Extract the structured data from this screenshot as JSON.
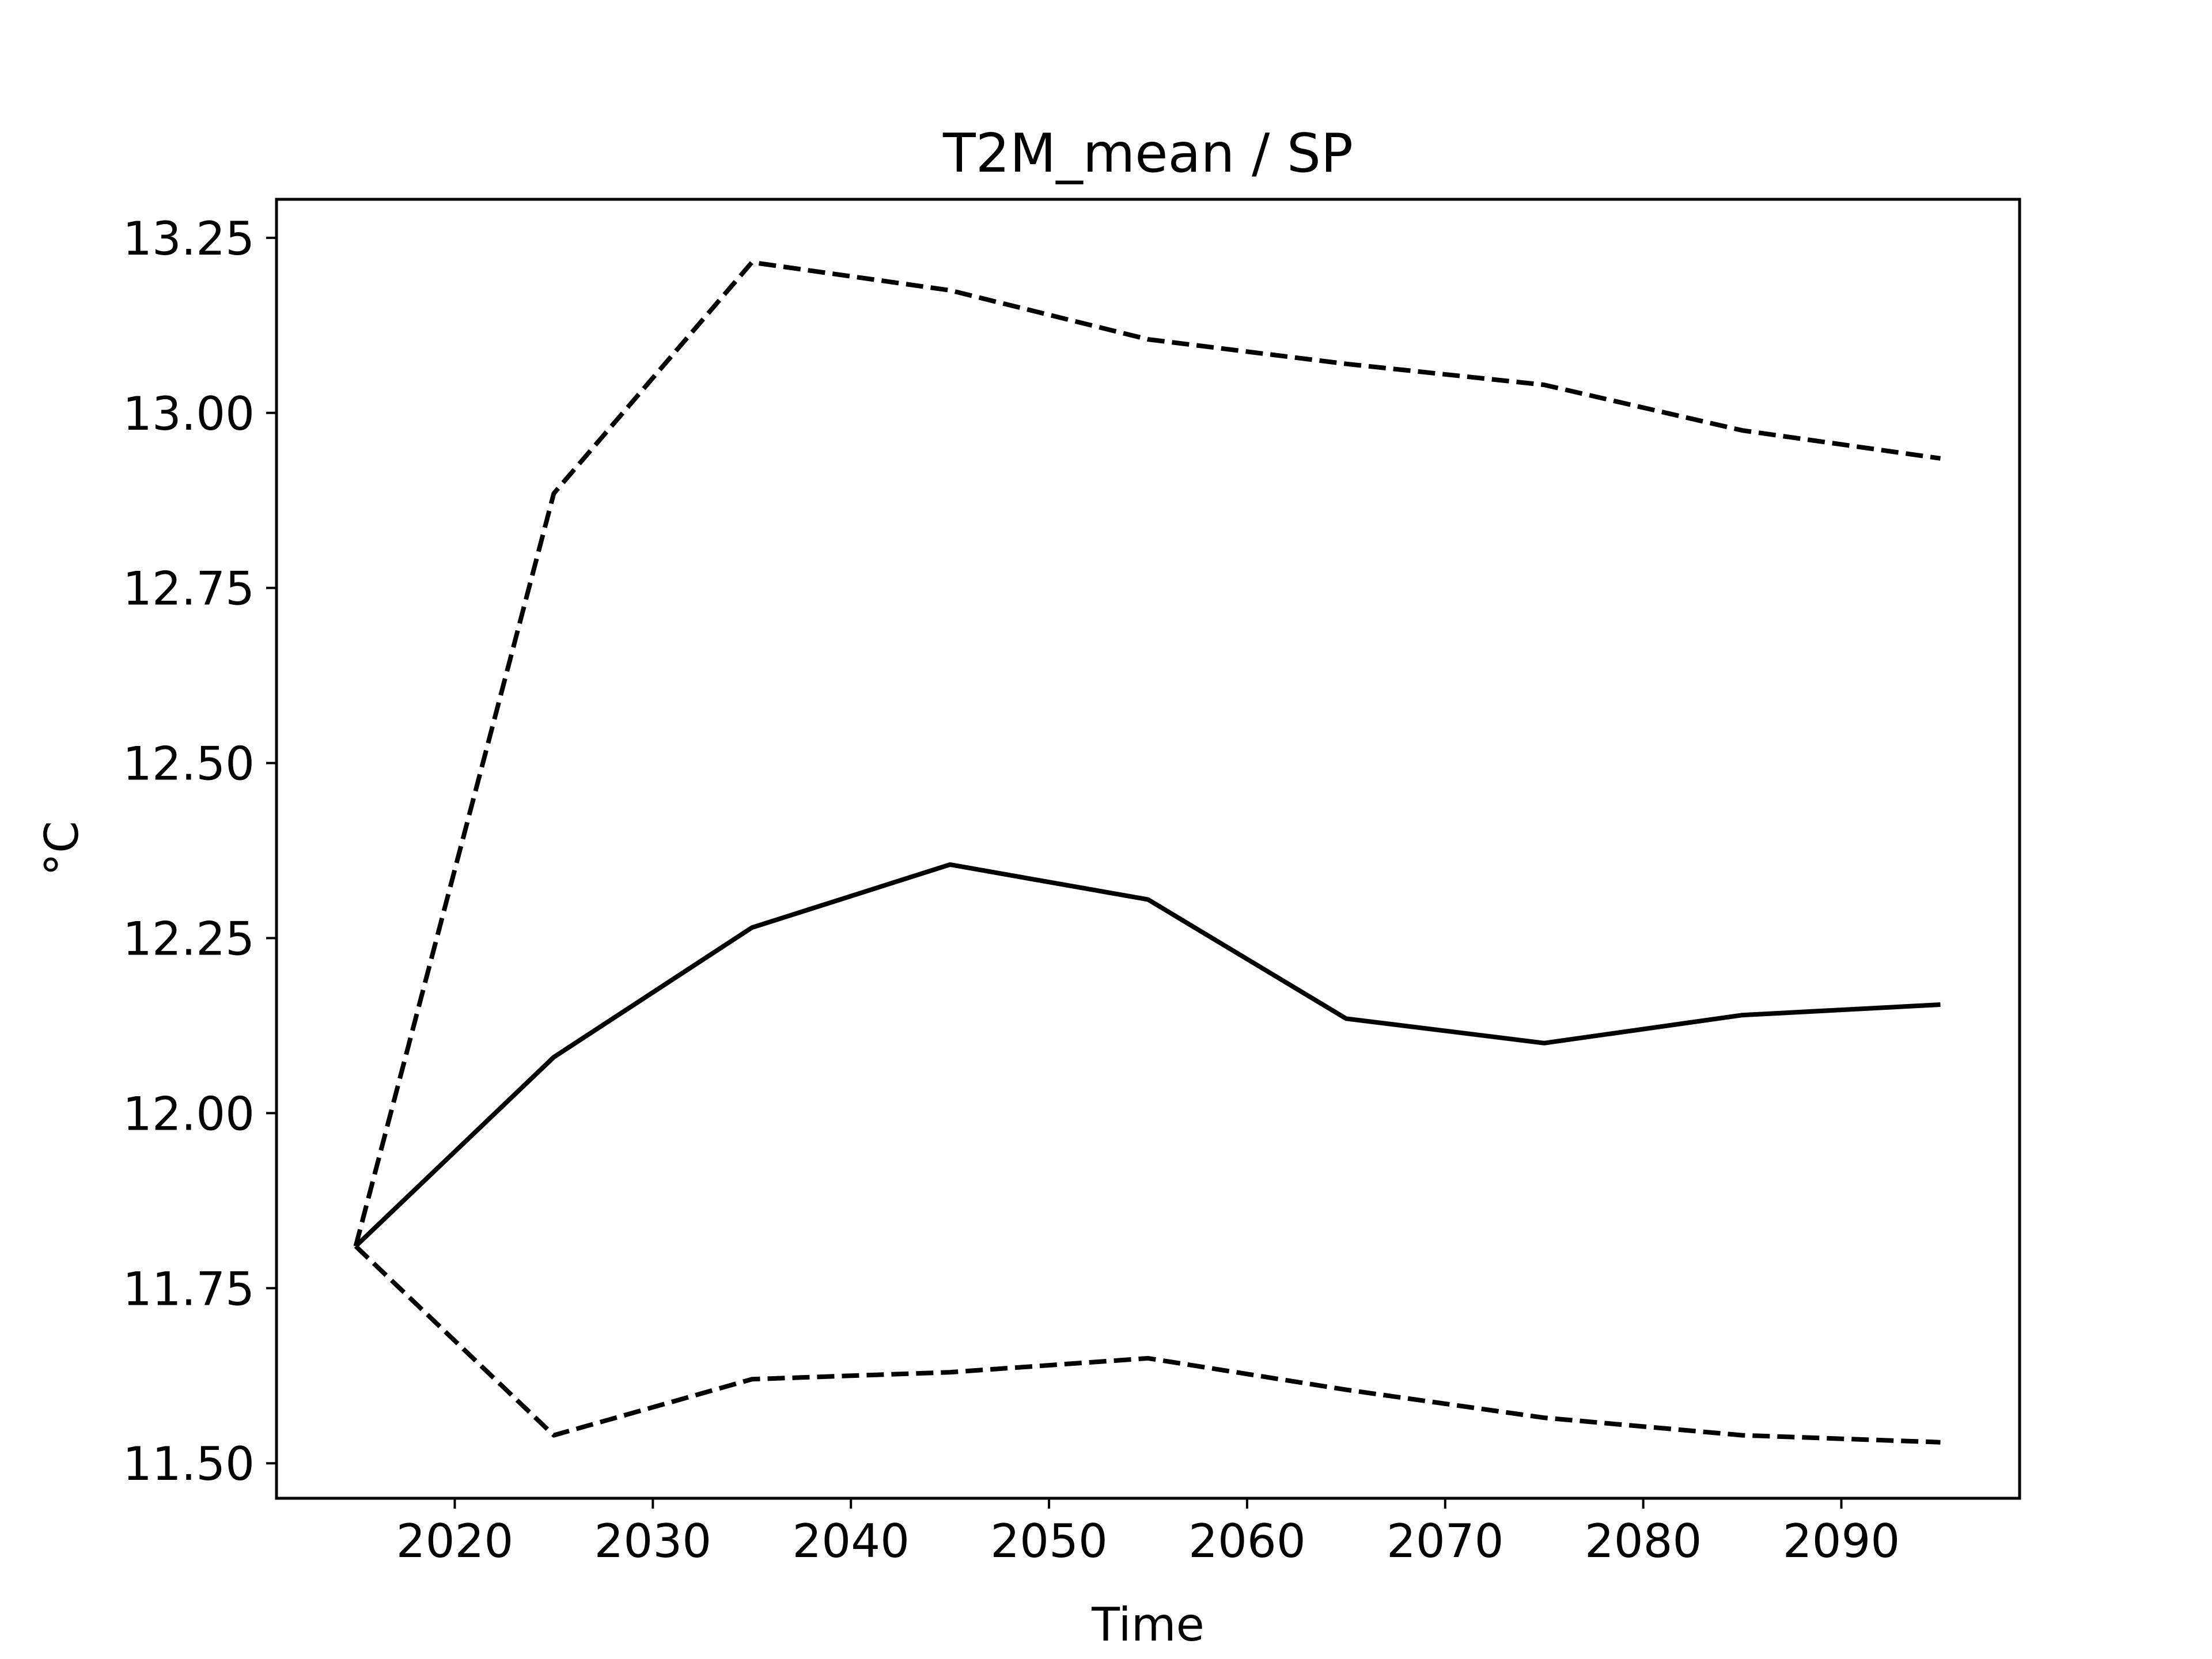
{
  "chart_data": {
    "type": "line",
    "title": "T2M_mean / SP",
    "xlabel": "Time",
    "ylabel": "°C",
    "x": [
      2015,
      2025,
      2035,
      2045,
      2055,
      2065,
      2075,
      2085,
      2095
    ],
    "xlim": [
      2011,
      2099
    ],
    "ylim": [
      11.45,
      13.305
    ],
    "xticks": [
      2020,
      2030,
      2040,
      2050,
      2060,
      2070,
      2080,
      2090
    ],
    "xtick_labels": [
      "2020",
      "2030",
      "2040",
      "2050",
      "2060",
      "2070",
      "2080",
      "2090"
    ],
    "yticks": [
      11.5,
      11.75,
      12.0,
      12.25,
      12.5,
      12.75,
      13.0,
      13.25
    ],
    "ytick_labels": [
      "11.50",
      "11.75",
      "12.00",
      "12.25",
      "12.50",
      "12.75",
      "13.00",
      "13.25"
    ],
    "grid": false,
    "series": [
      {
        "style": "dashed",
        "color": "#000000",
        "values": [
          11.81,
          12.885,
          13.215,
          13.175,
          13.105,
          13.07,
          13.04,
          12.975,
          12.935
        ]
      },
      {
        "style": "solid",
        "color": "#000000",
        "values": [
          11.81,
          12.08,
          12.265,
          12.355,
          12.305,
          12.135,
          12.1,
          12.14,
          12.155
        ]
      },
      {
        "style": "dashed",
        "color": "#000000",
        "values": [
          11.81,
          11.54,
          11.62,
          11.63,
          11.65,
          11.605,
          11.565,
          11.54,
          11.53
        ]
      }
    ]
  }
}
